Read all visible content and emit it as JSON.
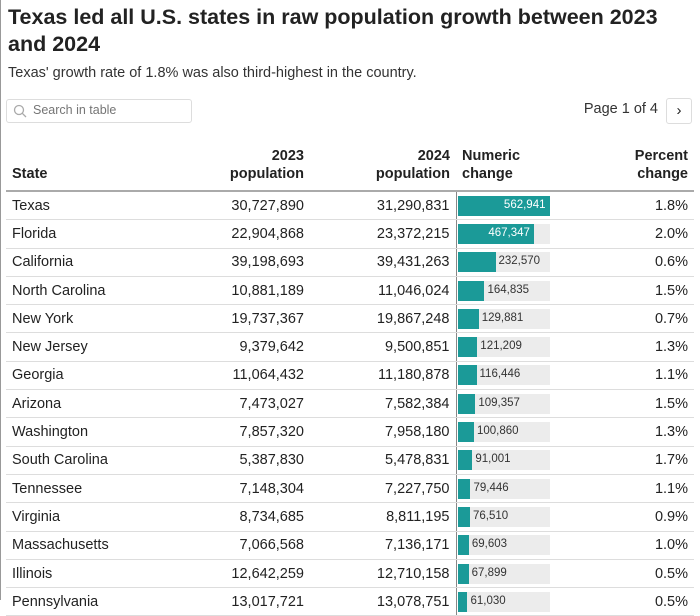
{
  "title": "Texas led all U.S. states in raw population growth between 2023 and 2024",
  "subtitle": "Texas' growth rate of 1.8% was also third-highest in the country.",
  "search": {
    "placeholder": "Search in table"
  },
  "pager": {
    "label": "Page 1 of 4",
    "next_icon": "chevron-right-icon"
  },
  "colors": {
    "bar": "#1b9a98",
    "track": "#ececec"
  },
  "chart_data": {
    "type": "table",
    "columns": [
      "State",
      "2023 population",
      "2024 population",
      "Numeric change",
      "Percent change"
    ],
    "headers": {
      "state": "State",
      "pop2023_a": "2023",
      "pop2023_b": "population",
      "pop2024_a": "2024",
      "pop2024_b": "population",
      "num_a": "Numeric",
      "num_b": "change",
      "pct_a": "Percent",
      "pct_b": "change"
    },
    "bar_max": 562941,
    "rows": [
      {
        "state": "Texas",
        "p23": "30,727,890",
        "p24": "31,290,831",
        "num": "562,941",
        "v": 562941,
        "pct": "1.8%"
      },
      {
        "state": "Florida",
        "p23": "22,904,868",
        "p24": "23,372,215",
        "num": "467,347",
        "v": 467347,
        "pct": "2.0%"
      },
      {
        "state": "California",
        "p23": "39,198,693",
        "p24": "39,431,263",
        "num": "232,570",
        "v": 232570,
        "pct": "0.6%"
      },
      {
        "state": "North Carolina",
        "p23": "10,881,189",
        "p24": "11,046,024",
        "num": "164,835",
        "v": 164835,
        "pct": "1.5%"
      },
      {
        "state": "New York",
        "p23": "19,737,367",
        "p24": "19,867,248",
        "num": "129,881",
        "v": 129881,
        "pct": "0.7%"
      },
      {
        "state": "New Jersey",
        "p23": "9,379,642",
        "p24": "9,500,851",
        "num": "121,209",
        "v": 121209,
        "pct": "1.3%"
      },
      {
        "state": "Georgia",
        "p23": "11,064,432",
        "p24": "11,180,878",
        "num": "116,446",
        "v": 116446,
        "pct": "1.1%"
      },
      {
        "state": "Arizona",
        "p23": "7,473,027",
        "p24": "7,582,384",
        "num": "109,357",
        "v": 109357,
        "pct": "1.5%"
      },
      {
        "state": "Washington",
        "p23": "7,857,320",
        "p24": "7,958,180",
        "num": "100,860",
        "v": 100860,
        "pct": "1.3%"
      },
      {
        "state": "South Carolina",
        "p23": "5,387,830",
        "p24": "5,478,831",
        "num": "91,001",
        "v": 91001,
        "pct": "1.7%"
      },
      {
        "state": "Tennessee",
        "p23": "7,148,304",
        "p24": "7,227,750",
        "num": "79,446",
        "v": 79446,
        "pct": "1.1%"
      },
      {
        "state": "Virginia",
        "p23": "8,734,685",
        "p24": "8,811,195",
        "num": "76,510",
        "v": 76510,
        "pct": "0.9%"
      },
      {
        "state": "Massachusetts",
        "p23": "7,066,568",
        "p24": "7,136,171",
        "num": "69,603",
        "v": 69603,
        "pct": "1.0%"
      },
      {
        "state": "Illinois",
        "p23": "12,642,259",
        "p24": "12,710,158",
        "num": "67,899",
        "v": 67899,
        "pct": "0.5%"
      },
      {
        "state": "Pennsylvania",
        "p23": "13,017,721",
        "p24": "13,078,751",
        "num": "61,030",
        "v": 61030,
        "pct": "0.5%"
      }
    ]
  }
}
